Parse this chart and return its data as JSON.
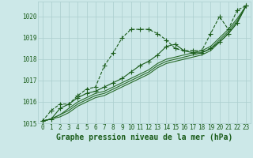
{
  "x": [
    0,
    1,
    2,
    3,
    4,
    5,
    6,
    7,
    8,
    9,
    10,
    11,
    12,
    13,
    14,
    15,
    16,
    17,
    18,
    19,
    20,
    21,
    22,
    23
  ],
  "series": [
    {
      "y": [
        1015.1,
        1015.6,
        1015.9,
        1015.9,
        1016.3,
        1016.6,
        1016.7,
        1017.7,
        1018.3,
        1019.0,
        1019.4,
        1019.4,
        1019.4,
        1019.2,
        1018.9,
        1018.5,
        1018.4,
        1018.4,
        1018.4,
        1019.2,
        1020.0,
        1019.4,
        1020.3,
        1020.5
      ],
      "color": "#1a5c1a",
      "linestyle": "--",
      "marker": "+",
      "linewidth": 0.8,
      "markersize": 4,
      "zorder": 4
    },
    {
      "y": [
        1015.1,
        1015.2,
        1015.4,
        1015.7,
        1016.0,
        1016.2,
        1016.4,
        1016.5,
        1016.7,
        1016.9,
        1017.1,
        1017.3,
        1017.5,
        1017.8,
        1018.0,
        1018.1,
        1018.2,
        1018.3,
        1018.4,
        1018.6,
        1019.0,
        1019.4,
        1019.9,
        1020.5
      ],
      "color": "#2a6b2a",
      "linestyle": "-",
      "marker": null,
      "linewidth": 0.8,
      "markersize": 0,
      "zorder": 2
    },
    {
      "y": [
        1015.1,
        1015.2,
        1015.4,
        1015.6,
        1015.9,
        1016.1,
        1016.3,
        1016.4,
        1016.6,
        1016.8,
        1017.0,
        1017.2,
        1017.4,
        1017.7,
        1017.9,
        1018.0,
        1018.1,
        1018.2,
        1018.3,
        1018.5,
        1018.9,
        1019.3,
        1019.8,
        1020.5
      ],
      "color": "#2a6b2a",
      "linestyle": "-",
      "marker": null,
      "linewidth": 0.8,
      "markersize": 0,
      "zorder": 2
    },
    {
      "y": [
        1015.1,
        1015.2,
        1015.3,
        1015.5,
        1015.8,
        1016.0,
        1016.2,
        1016.3,
        1016.5,
        1016.7,
        1016.9,
        1017.1,
        1017.3,
        1017.6,
        1017.8,
        1017.9,
        1018.0,
        1018.1,
        1018.2,
        1018.4,
        1018.8,
        1019.2,
        1019.7,
        1020.5
      ],
      "color": "#2a6b2a",
      "linestyle": "-",
      "marker": null,
      "linewidth": 0.8,
      "markersize": 0,
      "zorder": 2
    },
    {
      "y": [
        1015.1,
        1015.2,
        1015.7,
        1015.9,
        1016.2,
        1016.4,
        1016.5,
        1016.7,
        1016.9,
        1017.1,
        1017.4,
        1017.7,
        1017.9,
        1018.2,
        1018.6,
        1018.7,
        1018.4,
        1018.3,
        1018.3,
        1018.5,
        1018.8,
        1019.2,
        1019.7,
        1020.5
      ],
      "color": "#1a5c1a",
      "linestyle": "-",
      "marker": "+",
      "linewidth": 0.8,
      "markersize": 4,
      "zorder": 3
    }
  ],
  "ylim": [
    1015.0,
    1020.7
  ],
  "yticks": [
    1015,
    1016,
    1017,
    1018,
    1019,
    1020
  ],
  "xticks": [
    0,
    1,
    2,
    3,
    4,
    5,
    6,
    7,
    8,
    9,
    10,
    11,
    12,
    13,
    14,
    15,
    16,
    17,
    18,
    19,
    20,
    21,
    22,
    23
  ],
  "xlabel": "Graphe pression niveau de la mer (hPa)",
  "bg_color": "#cce8e8",
  "grid_color": "#aacece",
  "tick_color": "#1a5c1a",
  "label_color": "#1a5c1a",
  "xlabel_fontsize": 7,
  "tick_fontsize": 5.5
}
